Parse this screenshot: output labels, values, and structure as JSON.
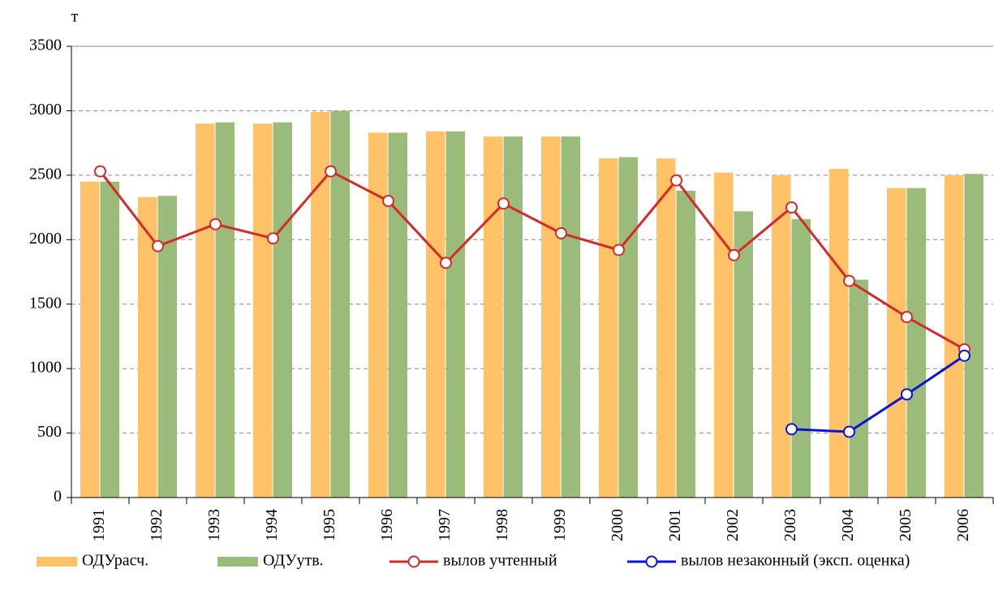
{
  "chart_data": {
    "type": "bar-line",
    "y_label": "т",
    "categories": [
      "1991",
      "1992",
      "1993",
      "1994",
      "1995",
      "1996",
      "1997",
      "1998",
      "1999",
      "2000",
      "2001",
      "2002",
      "2003",
      "2004",
      "2005",
      "2006"
    ],
    "series": [
      {
        "name": "ОДУрасч.",
        "type": "bar",
        "color": "#ffc266",
        "values": [
          2450,
          2330,
          2900,
          2900,
          2990,
          2830,
          2840,
          2800,
          2800,
          2630,
          2630,
          2520,
          2500,
          2550,
          2400,
          2500
        ]
      },
      {
        "name": "ОДУутв.",
        "type": "bar",
        "color": "#9bbb7a",
        "values": [
          2450,
          2340,
          2910,
          2910,
          3000,
          2830,
          2840,
          2800,
          2800,
          2640,
          2380,
          2220,
          2160,
          1690,
          2400,
          2510
        ]
      },
      {
        "name": "вылов учтенный",
        "type": "line",
        "color": "#d42a2a",
        "values": [
          2530,
          1950,
          2120,
          2010,
          2530,
          2300,
          1820,
          2280,
          2050,
          1920,
          2460,
          1880,
          2250,
          1680,
          1400,
          1150
        ]
      },
      {
        "name": "вылов незаконный (эксп. оценка)",
        "type": "line",
        "color": "#0a14d6",
        "values": [
          null,
          null,
          null,
          null,
          null,
          null,
          null,
          null,
          null,
          null,
          null,
          null,
          530,
          510,
          800,
          1100
        ]
      }
    ],
    "ylim": [
      0,
      3500
    ],
    "yticks": [
      0,
      500,
      1000,
      1500,
      2000,
      2500,
      3000,
      3500
    ],
    "grid": true
  }
}
